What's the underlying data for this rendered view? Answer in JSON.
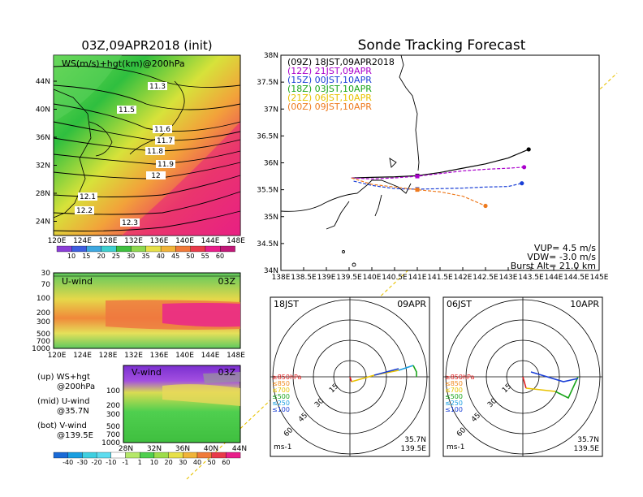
{
  "left": {
    "title": "03Z,09APR2018 (init)",
    "map_label": "WS(m/s)+hgt(km)@200hPa",
    "lat_ticks": [
      "44N",
      "40N",
      "36N",
      "32N",
      "28N",
      "24N"
    ],
    "lon_ticks": [
      "120E",
      "124E",
      "128E",
      "132E",
      "136E",
      "140E",
      "144E",
      "148E"
    ],
    "hgt_contours": [
      "11.3",
      "11.5",
      "11.6",
      "11.7",
      "11.8",
      "11.9",
      "12",
      "12.1",
      "12.2",
      "12.3"
    ],
    "top_colorbar": [
      "10",
      "15",
      "20",
      "25",
      "30",
      "35",
      "40",
      "45",
      "50",
      "55",
      "60"
    ],
    "u_panel": {
      "label": "U-wind",
      "time": "03Z",
      "p_ticks": [
        "30",
        "70",
        "100",
        "200",
        "300",
        "500",
        "700",
        "1000"
      ],
      "lon_ticks": [
        "120E",
        "124E",
        "128E",
        "132E",
        "136E",
        "140E",
        "144E",
        "148E"
      ]
    },
    "v_panel": {
      "label": "V-wind",
      "time": "03Z",
      "p_ticks": [
        "100",
        "200",
        "300",
        "500",
        "700",
        "1000"
      ],
      "lat_ticks": [
        "28N",
        "32N",
        "36N",
        "40N",
        "44N"
      ]
    },
    "notes": [
      {
        "a": "(up) WS+hgt",
        "b": "@200hPa"
      },
      {
        "a": "(mid) U-wind",
        "b": "@35.7N"
      },
      {
        "a": "(bot) V-wind",
        "b": "@139.5E"
      }
    ],
    "bottom_colorbar": [
      "-40",
      "-30",
      "-20",
      "-10",
      "-1",
      "1",
      "10",
      "20",
      "30",
      "40",
      "50",
      "60"
    ]
  },
  "right": {
    "title": "Sonde Tracking Forecast",
    "lat_ticks": [
      "38N",
      "37.5N",
      "37N",
      "36.5N",
      "36N",
      "35.5N",
      "35N",
      "34.5N",
      "34N"
    ],
    "lon_ticks": [
      "138E",
      "138.5E",
      "139E",
      "139.5E",
      "140E",
      "140.5E",
      "141E",
      "141.5E",
      "142E",
      "142.5E",
      "143E",
      "143.5E",
      "144E",
      "144.5E",
      "145E"
    ],
    "info": {
      "vup": "VUP= 4.5 m/s",
      "vdw": "VDW= -3.0 m/s",
      "burst": "Burst Alt= 21.0 km"
    }
  },
  "chart_data": {
    "type": "line",
    "xlabel": "",
    "ylabel": "",
    "xlim": [
      138,
      145
    ],
    "ylim": [
      34,
      38
    ],
    "series": [
      {
        "name": "(09Z) 18JST,09APR2018",
        "color": "#000000",
        "x": [
          139.55,
          140.0,
          140.5,
          141.0,
          141.5,
          142.0,
          142.5,
          143.0,
          143.45
        ],
        "y": [
          35.72,
          35.73,
          35.74,
          35.76,
          35.82,
          35.9,
          35.98,
          36.09,
          36.25
        ]
      },
      {
        "name": "(12Z) 21JST,09APR",
        "color": "#aa00cc",
        "x": [
          139.55,
          140.0,
          140.5,
          141.0,
          141.5,
          142.0,
          142.5,
          143.0,
          143.35
        ],
        "y": [
          35.72,
          35.7,
          35.72,
          35.75,
          35.8,
          35.85,
          35.88,
          35.9,
          35.92
        ]
      },
      {
        "name": "(15Z) 00JST,10APR",
        "color": "#1a3fd6",
        "x": [
          139.6,
          140.0,
          140.5,
          141.0,
          141.5,
          142.0,
          142.5,
          143.0,
          143.3
        ],
        "y": [
          35.66,
          35.58,
          35.52,
          35.51,
          35.52,
          35.53,
          35.55,
          35.56,
          35.62
        ]
      },
      {
        "name": "(18Z) 03JST,10APR",
        "color": "#1aa51a",
        "x": [],
        "y": []
      },
      {
        "name": "(21Z) 06JST,10APR",
        "color": "#e8c200",
        "x": [],
        "y": []
      },
      {
        "name": "(00Z) 09JST,10APR",
        "color": "#ee7a1e",
        "x": [
          139.55,
          140.0,
          140.5,
          141.0,
          141.5,
          142.0,
          142.5
        ],
        "y": [
          35.72,
          35.6,
          35.55,
          35.5,
          35.46,
          35.38,
          35.2
        ]
      }
    ],
    "hodographs": [
      {
        "time_left": "18JST",
        "date_right": "09APR",
        "levels": [
          "≥850hPa",
          "≤850",
          "≤700",
          "≤500",
          "≤250",
          "≤100"
        ],
        "level_colors": [
          "#e02020",
          "#f08a1e",
          "#e8c200",
          "#1aa51a",
          "#1a9ee0",
          "#1a3fd6"
        ],
        "rings": [
          "15",
          "30",
          "45",
          "60"
        ],
        "unit": "ms-1",
        "loc": [
          "35.7N",
          "139.5E"
        ]
      },
      {
        "time_left": "06JST",
        "date_right": "10APR",
        "levels": [
          "≥850hPa",
          "≤850",
          "≤700",
          "≤500",
          "≤250",
          "≤100"
        ],
        "level_colors": [
          "#e02020",
          "#f08a1e",
          "#e8c200",
          "#1aa51a",
          "#1a9ee0",
          "#1a3fd6"
        ],
        "rings": [
          "15",
          "30",
          "45",
          "60"
        ],
        "unit": "ms-1",
        "loc": [
          "35.7N",
          "139.5E"
        ]
      }
    ]
  }
}
